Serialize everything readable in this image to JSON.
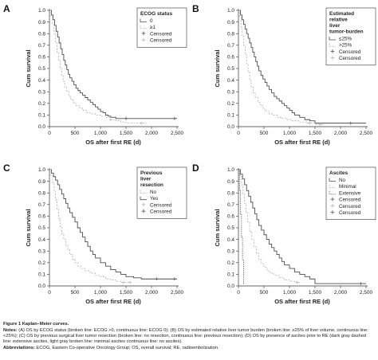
{
  "axes": {
    "y_label": "Cum survival",
    "x_label": "OS after first RE (d)",
    "y_ticks": [
      "0.0",
      "0.1",
      "0.2",
      "0.3",
      "0.4",
      "0.5",
      "0.6",
      "0.7",
      "0.8",
      "0.9",
      "1.0"
    ],
    "x_ticks": [
      "0",
      "500",
      "1,000",
      "1,500",
      "2,000",
      "2,500"
    ]
  },
  "colors": {
    "dark": "#4d4d4d",
    "light": "#b3b3b3",
    "darkdash": "#555555"
  },
  "chart_data": [
    {
      "type": "line",
      "panel": "A",
      "xlabel": "OS after first RE (d)",
      "ylabel": "Cum survival",
      "xlim": [
        0,
        2500
      ],
      "ylim": [
        0,
        1
      ],
      "legend_title": "ECOG status",
      "legend": [
        "0",
        "≥1",
        "Censored",
        "Censored"
      ],
      "series": [
        {
          "name": "0",
          "style": "dark",
          "x": [
            0,
            40,
            70,
            100,
            130,
            160,
            190,
            220,
            250,
            280,
            310,
            340,
            370,
            400,
            440,
            480,
            520,
            560,
            600,
            650,
            700,
            750,
            800,
            850,
            900,
            950,
            1000,
            1050,
            1100,
            1150,
            1200,
            1300,
            1450,
            2500
          ],
          "y": [
            1,
            0.96,
            0.92,
            0.87,
            0.82,
            0.77,
            0.72,
            0.67,
            0.62,
            0.57,
            0.53,
            0.49,
            0.45,
            0.42,
            0.39,
            0.36,
            0.33,
            0.31,
            0.29,
            0.27,
            0.25,
            0.23,
            0.21,
            0.19,
            0.17,
            0.15,
            0.13,
            0.12,
            0.1,
            0.09,
            0.08,
            0.07,
            0.07,
            0.07
          ],
          "censored_x": [
            1500,
            2450
          ]
        },
        {
          "name": "≥1",
          "style": "light",
          "x": [
            0,
            30,
            60,
            90,
            120,
            150,
            180,
            210,
            240,
            270,
            300,
            340,
            380,
            420,
            470,
            520,
            580,
            650,
            720,
            800,
            900,
            1000,
            1100,
            1200,
            1300,
            1400,
            1500,
            1900
          ],
          "y": [
            1,
            0.95,
            0.88,
            0.8,
            0.72,
            0.64,
            0.57,
            0.5,
            0.44,
            0.39,
            0.34,
            0.3,
            0.26,
            0.23,
            0.2,
            0.18,
            0.16,
            0.14,
            0.12,
            0.11,
            0.1,
            0.09,
            0.08,
            0.06,
            0.05,
            0.04,
            0.03,
            0.03
          ],
          "censored_x": [
            1200,
            1800
          ]
        }
      ]
    },
    {
      "type": "line",
      "panel": "B",
      "xlabel": "OS after first RE (d)",
      "ylabel": "Cum survival",
      "xlim": [
        0,
        2500
      ],
      "ylim": [
        0,
        1
      ],
      "legend_title": "Estimated relative liver tumor-burden",
      "legend": [
        "≤25%",
        ">25%",
        "Censored",
        "Censored"
      ],
      "series": [
        {
          "name": "≤25%",
          "style": "dark",
          "x": [
            0,
            40,
            70,
            100,
            130,
            160,
            190,
            220,
            250,
            280,
            310,
            340,
            370,
            400,
            440,
            480,
            520,
            560,
            600,
            650,
            700,
            750,
            800,
            850,
            900,
            950,
            1000,
            1050,
            1100,
            1200,
            1300,
            1400,
            1500,
            2500
          ],
          "y": [
            1,
            0.96,
            0.92,
            0.88,
            0.84,
            0.8,
            0.76,
            0.72,
            0.68,
            0.64,
            0.6,
            0.56,
            0.52,
            0.48,
            0.44,
            0.41,
            0.38,
            0.35,
            0.32,
            0.29,
            0.26,
            0.24,
            0.22,
            0.2,
            0.18,
            0.16,
            0.14,
            0.12,
            0.1,
            0.08,
            0.06,
            0.05,
            0.03,
            0.03
          ],
          "censored_x": [
            2200
          ]
        },
        {
          "name": ">25%",
          "style": "light",
          "x": [
            0,
            25,
            50,
            75,
            100,
            130,
            160,
            190,
            220,
            250,
            290,
            330,
            380,
            430,
            480,
            540,
            600,
            680,
            760,
            850,
            950,
            1050,
            1200,
            1350,
            1500,
            1650
          ],
          "y": [
            1,
            0.94,
            0.86,
            0.78,
            0.7,
            0.62,
            0.54,
            0.47,
            0.4,
            0.34,
            0.29,
            0.25,
            0.21,
            0.18,
            0.15,
            0.13,
            0.11,
            0.1,
            0.08,
            0.07,
            0.06,
            0.05,
            0.04,
            0.03,
            0.02,
            0.02
          ],
          "censored_x": [
            1400,
            1600
          ]
        }
      ]
    },
    {
      "type": "line",
      "panel": "C",
      "xlabel": "OS after first RE (d)",
      "ylabel": "Cum survival",
      "xlim": [
        0,
        2500
      ],
      "ylim": [
        0,
        1
      ],
      "legend_title": "Previous liver resection",
      "legend": [
        "No",
        "Yes",
        "Censored",
        "Censored"
      ],
      "series": [
        {
          "name": "Yes",
          "style": "dark",
          "x": [
            0,
            40,
            80,
            120,
            160,
            200,
            240,
            280,
            320,
            360,
            400,
            450,
            500,
            550,
            600,
            650,
            700,
            750,
            800,
            850,
            900,
            1000,
            1100,
            1200,
            1300,
            1400,
            1500,
            1650,
            1800,
            2000,
            2500
          ],
          "y": [
            1,
            0.97,
            0.94,
            0.91,
            0.87,
            0.83,
            0.79,
            0.75,
            0.71,
            0.67,
            0.63,
            0.59,
            0.55,
            0.5,
            0.46,
            0.42,
            0.38,
            0.34,
            0.3,
            0.27,
            0.24,
            0.2,
            0.17,
            0.14,
            0.12,
            0.1,
            0.08,
            0.07,
            0.06,
            0.06,
            0.06
          ],
          "censored_x": [
            2100,
            2450
          ]
        },
        {
          "name": "No",
          "style": "light",
          "x": [
            0,
            30,
            60,
            90,
            120,
            150,
            180,
            210,
            240,
            280,
            320,
            360,
            400,
            450,
            500,
            560,
            620,
            700,
            800,
            900,
            1000,
            1100,
            1200,
            1300,
            1400,
            1600
          ],
          "y": [
            1,
            0.95,
            0.89,
            0.82,
            0.74,
            0.66,
            0.58,
            0.51,
            0.45,
            0.4,
            0.35,
            0.31,
            0.27,
            0.23,
            0.2,
            0.17,
            0.15,
            0.13,
            0.11,
            0.09,
            0.08,
            0.06,
            0.05,
            0.04,
            0.03,
            0.03
          ],
          "censored_x": [
            1450,
            1580
          ]
        }
      ]
    },
    {
      "type": "line",
      "panel": "D",
      "xlabel": "OS after first RE (d)",
      "ylabel": "Cum survival",
      "xlim": [
        0,
        2500
      ],
      "ylim": [
        0,
        1
      ],
      "legend_title": "Ascites",
      "legend": [
        "No",
        "Minimal",
        "Extensive",
        "Censored",
        "Censored",
        "Censored"
      ],
      "series": [
        {
          "name": "No",
          "style": "dark",
          "x": [
            0,
            40,
            80,
            120,
            160,
            200,
            240,
            280,
            320,
            360,
            400,
            450,
            500,
            550,
            600,
            650,
            700,
            750,
            800,
            850,
            900,
            1000,
            1100,
            1200,
            1300,
            1400,
            1500,
            2500
          ],
          "y": [
            1,
            0.96,
            0.92,
            0.87,
            0.82,
            0.77,
            0.72,
            0.67,
            0.62,
            0.57,
            0.52,
            0.48,
            0.44,
            0.4,
            0.36,
            0.33,
            0.3,
            0.27,
            0.24,
            0.21,
            0.18,
            0.15,
            0.12,
            0.1,
            0.08,
            0.06,
            0.02,
            0.02
          ],
          "censored_x": [
            2400
          ]
        },
        {
          "name": "Minimal",
          "style": "light",
          "x": [
            0,
            30,
            60,
            90,
            120,
            150,
            180,
            220,
            260,
            300,
            350,
            400,
            450,
            500,
            560,
            620,
            700,
            800,
            900,
            1000,
            1100,
            1200
          ],
          "y": [
            1,
            0.94,
            0.87,
            0.79,
            0.71,
            0.63,
            0.55,
            0.47,
            0.4,
            0.34,
            0.28,
            0.23,
            0.19,
            0.16,
            0.13,
            0.11,
            0.09,
            0.07,
            0.05,
            0.04,
            0.03,
            0.03
          ],
          "censored_x": [
            1150
          ]
        },
        {
          "name": "Extensive",
          "style": "darkdash",
          "x": [
            0,
            20,
            40,
            60,
            80,
            100,
            120
          ],
          "y": [
            1,
            0.82,
            0.62,
            0.42,
            0.22,
            0.02,
            0.02
          ],
          "censored_x": []
        }
      ]
    }
  ],
  "caption": {
    "title": "Figure 1 Kaplan–Meier curves.",
    "notes_label": "Notes:",
    "notes_text": "(A) OS by ECOG status (broken line: ECOG >0, continuous line: ECOG 0); (B) OS by estimated relative liver tumor burden (broken line: ≥25% of liver volume, continuous line: <25%); (C) OS by previous surgical liver tumor resection (broken line: no resection, continuous line: previous resection); (D) OS by presence of ascites prior to RE (dark gray dashed line: extensive ascites, light gray broken line: minimal ascites continuous line: no ascites).",
    "abbrev_label": "Abbreviations:",
    "abbrev_text": "ECOG, Eastern Co-operative Oncology Group; OS, overall survival; RE, radioembolization."
  }
}
